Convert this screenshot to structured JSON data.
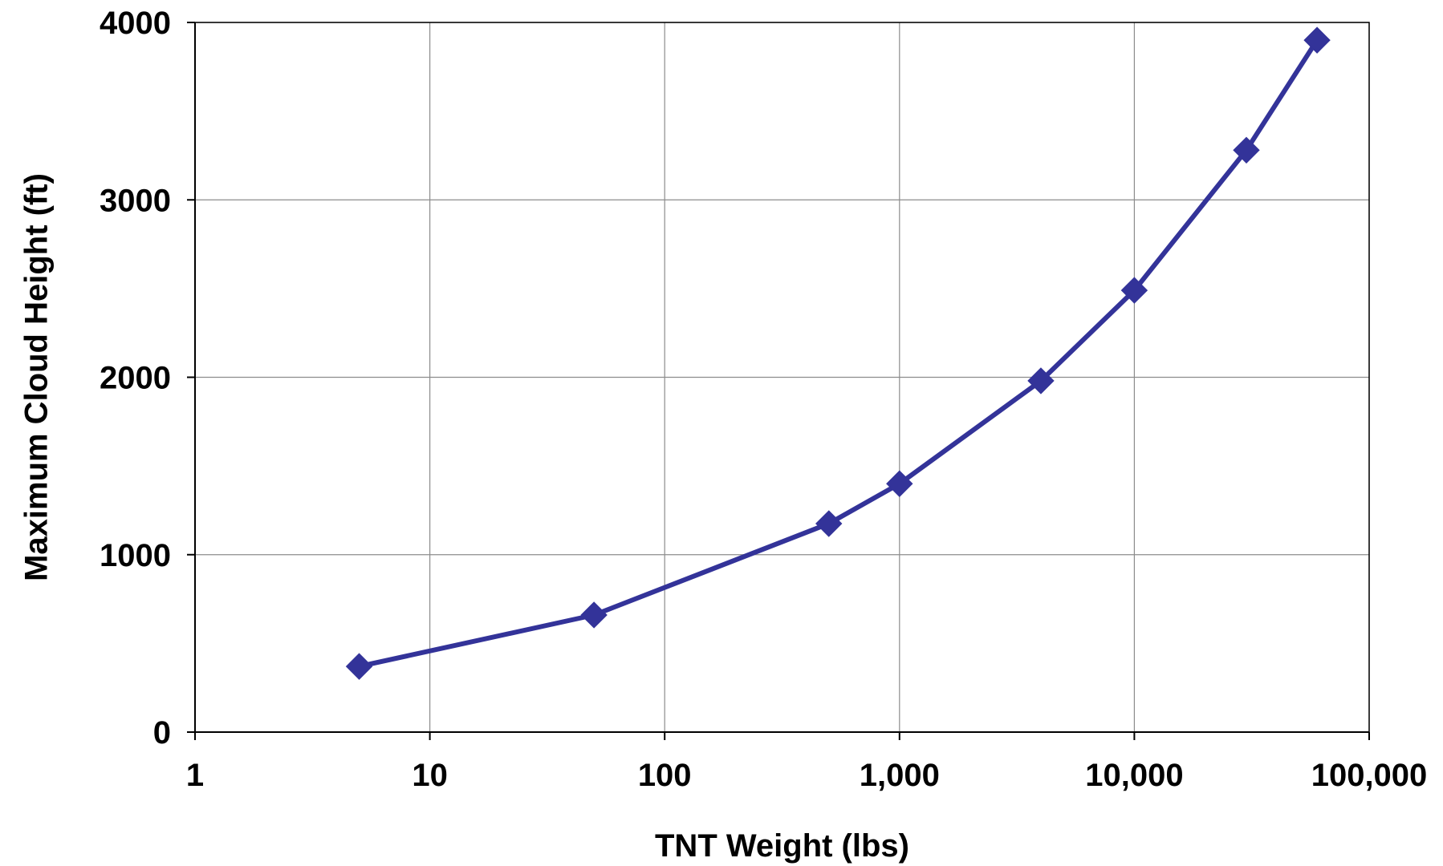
{
  "chart_data": {
    "type": "line",
    "title": "",
    "xlabel": "TNT Weight (lbs)",
    "ylabel": "Maximum Cloud Height (ft)",
    "x_scale": "log",
    "xlim": [
      1,
      100000
    ],
    "ylim": [
      0,
      4000
    ],
    "x_ticks": [
      1,
      10,
      100,
      1000,
      10000,
      100000
    ],
    "x_tick_labels": [
      "1",
      "10",
      "100",
      "1,000",
      "10,000",
      "100,000"
    ],
    "y_ticks": [
      0,
      1000,
      2000,
      3000,
      4000
    ],
    "y_tick_labels": [
      "0",
      "1000",
      "2000",
      "3000",
      "4000"
    ],
    "grid": true,
    "legend": "none",
    "series": [
      {
        "color": "#333399",
        "marker": "diamond",
        "x": [
          5,
          50,
          500,
          1000,
          4000,
          10000,
          30000,
          60000
        ],
        "y": [
          370,
          660,
          1175,
          1400,
          1980,
          2490,
          3280,
          3900
        ]
      }
    ]
  }
}
